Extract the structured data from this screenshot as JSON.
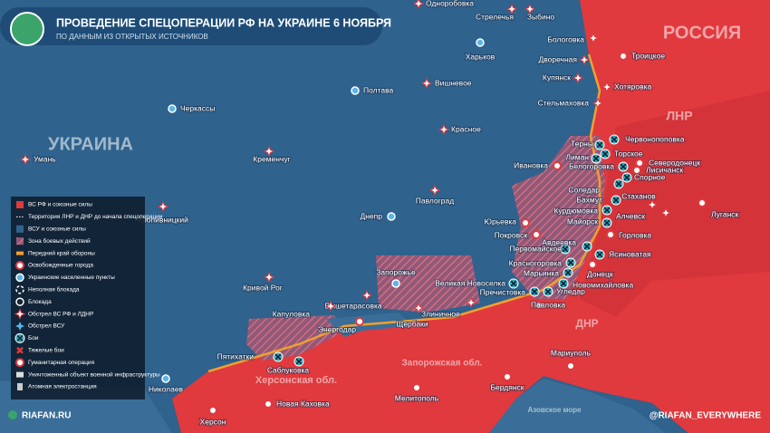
{
  "header": {
    "title": "ПРОВЕДЕНИЕ СПЕЦОПЕРАЦИИ РФ НА УКРАИНЕ 6 НОЯБРЯ",
    "subtitle": "ПО ДАННЫМ ИЗ ОТКРЫТЫХ ИСТОЧНИКОВ"
  },
  "regions": [
    "РОССИЯ",
    "ЛНР",
    "УКРАИНА",
    "ДНР",
    "Херсонская обл.",
    "Запорожская обл.",
    "Азовское море"
  ],
  "cities": [
    "Одноробовка",
    "Стрелечья",
    "Зыбино",
    "Бологовка",
    "Троицкое",
    "Харьков",
    "Дворечная",
    "Вишневое",
    "Купянск",
    "Хотяровка",
    "Полтава",
    "Черкассы",
    "Стельмаховка",
    "Красное",
    "Терны",
    "Червонопоповка",
    "Кременчуг",
    "Торское",
    "Лиман",
    "Северодонецк",
    "Белогоровка",
    "Лисичанск",
    "Ивановка",
    "Спорное",
    "Умань",
    "Соледар",
    "Стаханов",
    "Бахмут",
    "Луганск",
    "Павлоград",
    "Курдюмовка",
    "Алчевск",
    "Днепр",
    "Майорск",
    "Юрьевка",
    "Кропивницкий",
    "Покровск",
    "Горловка",
    "Первомайское",
    "Авдеевка",
    "Ясиноватая",
    "Запорожье",
    "Великая Новоселка",
    "Красногоровка",
    "Марьинка",
    "Донецк",
    "Новомихайловка",
    "Пречистовка",
    "Угледар",
    "Кривой Рог",
    "Вышетарасовка",
    "Капуловка",
    "Павловка",
    "Злиничное",
    "Щербаки",
    "Энергодар",
    "Мариуполь",
    "Пятихатки",
    "Саблуковка",
    "Николаев",
    "Новая Каховка",
    "Бердянск",
    "Мелитополь",
    "Херсон"
  ],
  "legend": [
    "ВС РФ и союзные силы",
    "Территория ЛНР и ДНР до начала спецоперации",
    "ВСУ и союзные силы",
    "Зона боевых действий",
    "Передний край обороны",
    "Освобожденные города",
    "Украинские населенные пункты",
    "Неполная блокада",
    "Блокада",
    "Обстрел ВС РФ и ЛДНР",
    "Обстрел ВСУ",
    "Бои",
    "Тяжелые бои",
    "Гуманитарная операция",
    "Уничтоженный объект военной инфраструктуры",
    "Атомная электростанция"
  ],
  "footer": {
    "site": "RIAFAN.RU",
    "handle": "@RIAFAN_EVERYWHERE"
  }
}
